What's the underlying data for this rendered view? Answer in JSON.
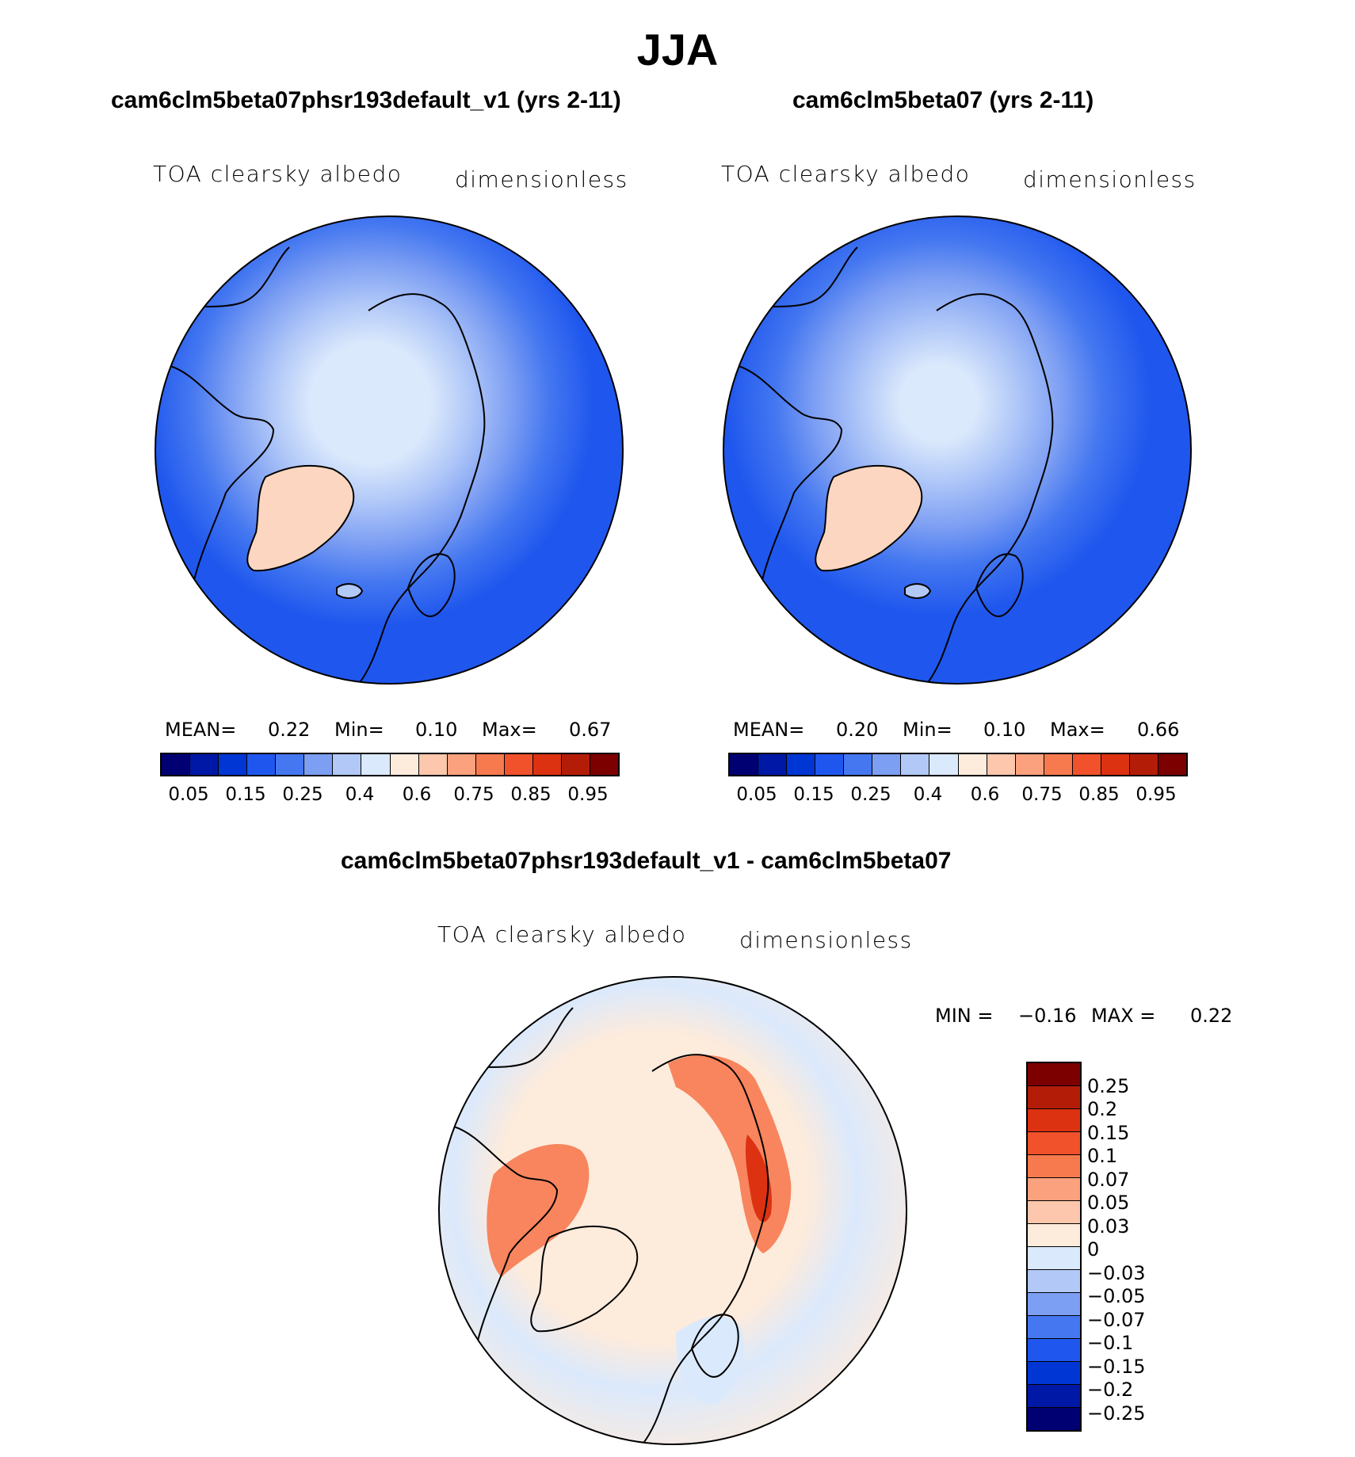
{
  "figure_title": "JJA",
  "panels": [
    {
      "title": "cam6clm5beta07phsr193default_v1 (yrs 2-11)",
      "variable": "TOA clearsky albedo",
      "units": "dimensionless",
      "stats": {
        "mean_label": "MEAN=",
        "mean": "0.22",
        "min_label": "Min=",
        "min": "0.10",
        "max_label": "Max=",
        "max": "0.67"
      }
    },
    {
      "title": "cam6clm5beta07 (yrs 2-11)",
      "variable": "TOA clearsky albedo",
      "units": "dimensionless",
      "stats": {
        "mean_label": "MEAN=",
        "mean": "0.20",
        "min_label": "Min=",
        "min": "0.10",
        "max_label": "Max=",
        "max": "0.66"
      }
    }
  ],
  "diff_panel": {
    "title": "cam6clm5beta07phsr193default_v1 - cam6clm5beta07",
    "variable": "TOA clearsky albedo",
    "units": "dimensionless",
    "stats": {
      "min_label": "MIN =",
      "min": "−0.16",
      "max_label": "MAX =",
      "max": "0.22"
    }
  },
  "colorbar_main": {
    "colors": [
      "#000072",
      "#0018a6",
      "#0036d4",
      "#1f57ee",
      "#4477f0",
      "#7c9ef3",
      "#b2c9f8",
      "#dbe9fc",
      "#fdebdc",
      "#fcc7ac",
      "#fba17e",
      "#f77a4f",
      "#f1512b",
      "#dc3212",
      "#b31d08",
      "#7d0000"
    ],
    "tick_labels": [
      "0.05",
      "0.15",
      "0.25",
      "0.4",
      "0.6",
      "0.75",
      "0.85",
      "0.95"
    ]
  },
  "colorbar_diff": {
    "colors": [
      "#7d0000",
      "#b31d08",
      "#dc3212",
      "#f1512b",
      "#f77a4f",
      "#fba17e",
      "#fcc7ac",
      "#fdebdc",
      "#dbe9fc",
      "#b2c9f8",
      "#7c9ef3",
      "#4477f0",
      "#1f57ee",
      "#0036d4",
      "#0018a6",
      "#000072"
    ],
    "tick_labels": [
      "0.25",
      "0.2",
      "0.15",
      "0.1",
      "0.07",
      "0.05",
      "0.03",
      "0",
      "−0.03",
      "−0.05",
      "−0.07",
      "−0.1",
      "−0.15",
      "−0.2",
      "−0.25"
    ]
  }
}
